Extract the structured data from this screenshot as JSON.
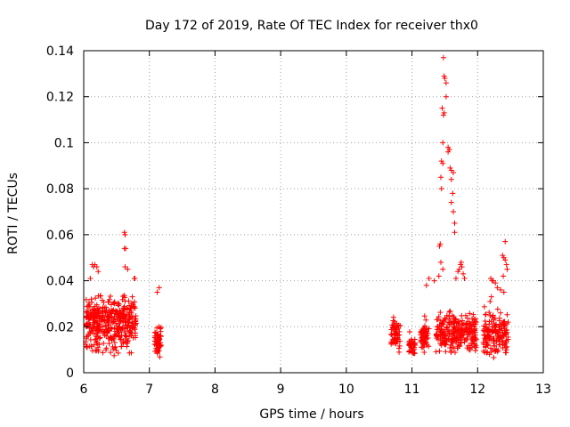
{
  "chart_data": {
    "type": "scatter",
    "title": "Day 172 of 2019, Rate Of TEC Index for receiver thx0",
    "xlabel": "GPS time / hours",
    "ylabel": "ROTI / TECUs",
    "xlim": [
      6,
      13
    ],
    "ylim": [
      0,
      0.14
    ],
    "x_ticks": [
      "6",
      "7",
      "8",
      "9",
      "10",
      "11",
      "12",
      "13"
    ],
    "y_ticks": [
      "0",
      "0.02",
      "0.04",
      "0.06",
      "0.08",
      "0.1",
      "0.12",
      "0.14"
    ],
    "grid": true,
    "marker": "+",
    "marker_color": "#ff0000",
    "series": [
      {
        "name": "ROTI",
        "clusters": [
          {
            "x_range": [
              6.03,
              6.8
            ],
            "y_range": [
              0.005,
              0.038
            ],
            "count": 420
          },
          {
            "x_range": [
              7.08,
              7.18
            ],
            "y_range": [
              0.004,
              0.024
            ],
            "count": 60
          },
          {
            "x_range": [
              10.68,
              10.82
            ],
            "y_range": [
              0.005,
              0.028
            ],
            "count": 60
          },
          {
            "x_range": [
              10.95,
              11.05
            ],
            "y_range": [
              0.006,
              0.018
            ],
            "count": 40
          },
          {
            "x_range": [
              11.13,
              11.26
            ],
            "y_range": [
              0.006,
              0.025
            ],
            "count": 60
          },
          {
            "x_range": [
              11.36,
              11.98
            ],
            "y_range": [
              0.006,
              0.03
            ],
            "count": 260
          },
          {
            "x_range": [
              12.08,
              12.47
            ],
            "y_range": [
              0.004,
              0.03
            ],
            "count": 160
          }
        ],
        "points": [
          [
            6.13,
            0.047
          ],
          [
            6.15,
            0.046
          ],
          [
            6.17,
            0.047
          ],
          [
            6.2,
            0.046
          ],
          [
            6.22,
            0.044
          ],
          [
            6.1,
            0.041
          ],
          [
            6.62,
            0.061
          ],
          [
            6.63,
            0.06
          ],
          [
            6.62,
            0.054
          ],
          [
            6.64,
            0.054
          ],
          [
            6.63,
            0.046
          ],
          [
            6.67,
            0.045
          ],
          [
            6.77,
            0.041
          ],
          [
            6.78,
            0.041
          ],
          [
            6.74,
            0.033
          ],
          [
            7.15,
            0.037
          ],
          [
            7.12,
            0.035
          ],
          [
            11.48,
            0.137
          ],
          [
            11.49,
            0.129
          ],
          [
            11.5,
            0.128
          ],
          [
            11.52,
            0.126
          ],
          [
            11.52,
            0.12
          ],
          [
            11.46,
            0.115
          ],
          [
            11.49,
            0.113
          ],
          [
            11.48,
            0.112
          ],
          [
            11.47,
            0.1
          ],
          [
            11.55,
            0.098
          ],
          [
            11.57,
            0.097
          ],
          [
            11.55,
            0.096
          ],
          [
            11.45,
            0.092
          ],
          [
            11.47,
            0.091
          ],
          [
            11.58,
            0.089
          ],
          [
            11.6,
            0.088
          ],
          [
            11.63,
            0.087
          ],
          [
            11.44,
            0.085
          ],
          [
            11.6,
            0.084
          ],
          [
            11.45,
            0.08
          ],
          [
            11.62,
            0.078
          ],
          [
            11.6,
            0.074
          ],
          [
            11.63,
            0.07
          ],
          [
            11.65,
            0.065
          ],
          [
            11.65,
            0.061
          ],
          [
            11.43,
            0.056
          ],
          [
            11.42,
            0.055
          ],
          [
            11.44,
            0.048
          ],
          [
            11.47,
            0.045
          ],
          [
            11.41,
            0.042
          ],
          [
            11.75,
            0.048
          ],
          [
            11.74,
            0.047
          ],
          [
            11.76,
            0.046
          ],
          [
            11.72,
            0.045
          ],
          [
            11.7,
            0.044
          ],
          [
            11.78,
            0.043
          ],
          [
            11.67,
            0.041
          ],
          [
            11.8,
            0.041
          ],
          [
            11.26,
            0.041
          ],
          [
            11.34,
            0.04
          ],
          [
            11.22,
            0.038
          ],
          [
            12.42,
            0.057
          ],
          [
            12.38,
            0.051
          ],
          [
            12.4,
            0.05
          ],
          [
            12.42,
            0.049
          ],
          [
            12.44,
            0.047
          ],
          [
            12.45,
            0.045
          ],
          [
            12.39,
            0.042
          ],
          [
            12.2,
            0.041
          ],
          [
            12.22,
            0.04
          ],
          [
            12.24,
            0.04
          ],
          [
            12.27,
            0.039
          ],
          [
            12.3,
            0.037
          ],
          [
            12.35,
            0.036
          ],
          [
            12.4,
            0.035
          ],
          [
            12.21,
            0.033
          ],
          [
            12.19,
            0.031
          ]
        ]
      }
    ]
  }
}
